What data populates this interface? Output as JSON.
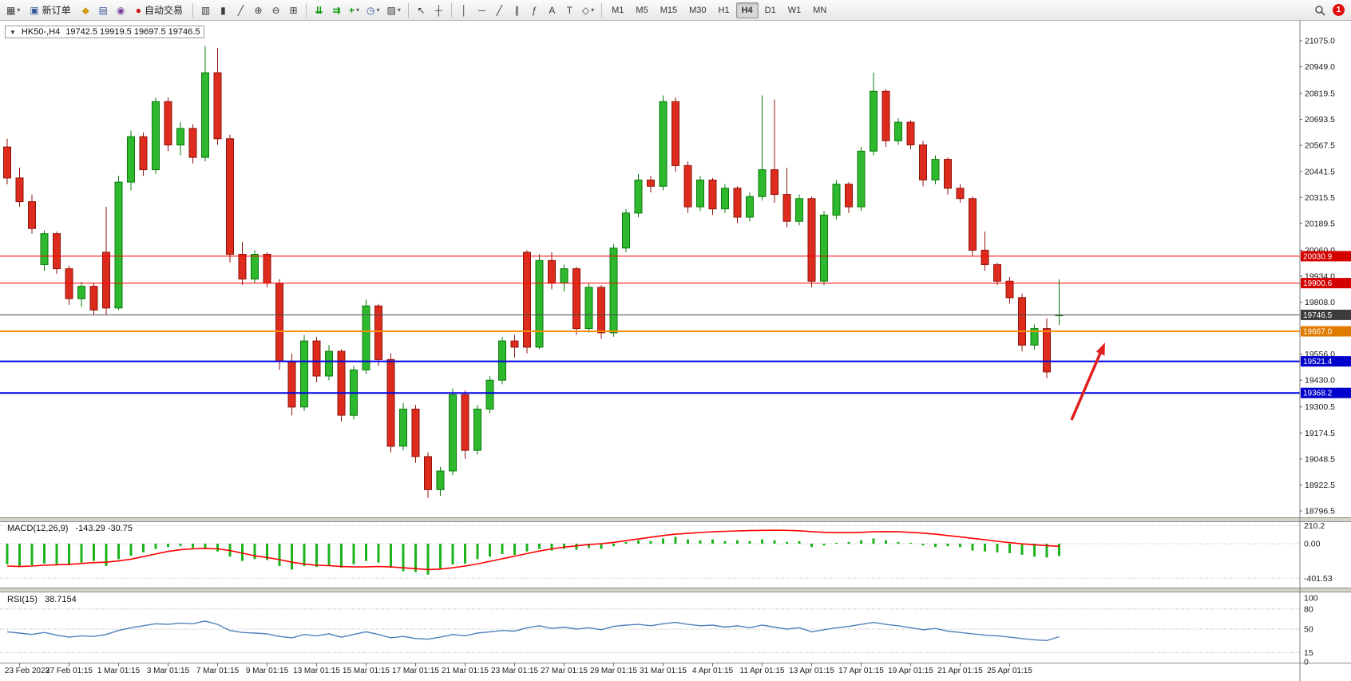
{
  "toolbar": {
    "new_order_label": "新订单",
    "auto_trading_label": "自动交易",
    "timeframes": [
      "M1",
      "M5",
      "M15",
      "M30",
      "H1",
      "H4",
      "D1",
      "W1",
      "MN"
    ],
    "active_timeframe": "H4",
    "notification_count": "1",
    "icons": {
      "new_chart": "▦",
      "caret": "▾",
      "new_order": "▣",
      "market_watch": "◆",
      "data_window": "▤",
      "navigator": "◉",
      "auto_trading_dot": "●",
      "chart_bars": "▥",
      "chart_candles": "▮",
      "chart_line": "╱",
      "zoom_in": "⊕",
      "zoom_out": "⊖",
      "tile_windows": "⊞",
      "auto_scroll": "⇊",
      "chart_shift": "⇉",
      "indicators_plus": "+",
      "periods_clock": "◷",
      "templates": "▨",
      "cursor": "↖",
      "crosshair": "┼",
      "vline": "│",
      "hline": "─",
      "trendline": "╱",
      "channel": "∥",
      "fibonacci": "ƒ",
      "text": "A",
      "text_label": "T",
      "shapes": "◇"
    }
  },
  "chart": {
    "collapse_glyph": "▼",
    "symbol_period": "HK50-,H4",
    "ohlc": "19742.5 19919.5 19697.5 19746.5"
  },
  "indicators": {
    "macd": {
      "name": "MACD(12,26,9)",
      "values": "-143.29 -30.75"
    },
    "rsi": {
      "name": "RSI(15)",
      "value": "38.7154"
    }
  },
  "chart_data": {
    "type": "candlestick",
    "symbol": "HK50-",
    "period": "H4",
    "last_ohlc": {
      "open": 19742.5,
      "high": 19919.5,
      "low": 19697.5,
      "close": 19746.5
    },
    "price_ticks": [
      "21075.0",
      "20949.0",
      "20819.5",
      "20693.5",
      "20567.5",
      "20441.5",
      "20315.5",
      "20189.5",
      "20060.0",
      "19934.0",
      "19808.0",
      "19556.0",
      "19430.0",
      "19300.5",
      "19174.5",
      "19048.5",
      "18922.5",
      "18796.5"
    ],
    "hlines": [
      {
        "value": 20030.9,
        "label": "20030.9",
        "color": "#ff0000",
        "width": 1,
        "badge": "#d40000"
      },
      {
        "value": 19900.6,
        "label": "19900.6",
        "color": "#ff0000",
        "width": 1,
        "badge": "#d40000"
      },
      {
        "value": 19746.5,
        "label": "19746.5",
        "color": "#4a4a4a",
        "width": 1,
        "badge": "#3c3c3c"
      },
      {
        "value": 19667.0,
        "label": "19667.0",
        "color": "#ff8c00",
        "width": 2,
        "badge": "#e07b00"
      },
      {
        "value": 19521.4,
        "label": "19521.4",
        "color": "#0000e8",
        "width": 2,
        "badge": "#0000cc"
      },
      {
        "value": 19368.2,
        "label": "19368.2",
        "color": "#0000e8",
        "width": 2,
        "badge": "#0000cc"
      }
    ],
    "candles": [
      [
        20560,
        20600,
        20380,
        20410
      ],
      [
        20410,
        20460,
        20270,
        20295
      ],
      [
        20295,
        20330,
        20140,
        20165
      ],
      [
        19990,
        20155,
        19960,
        20140
      ],
      [
        20140,
        20150,
        19945,
        19970
      ],
      [
        19970,
        19985,
        19795,
        19825
      ],
      [
        19825,
        19905,
        19785,
        19885
      ],
      [
        19885,
        19900,
        19745,
        19770
      ],
      [
        20050,
        20270,
        19745,
        19780
      ],
      [
        19780,
        20420,
        19770,
        20390
      ],
      [
        20390,
        20640,
        20350,
        20610
      ],
      [
        20610,
        20630,
        20420,
        20450
      ],
      [
        20450,
        20800,
        20430,
        20780
      ],
      [
        20780,
        20800,
        20540,
        20570
      ],
      [
        20570,
        20680,
        20520,
        20650
      ],
      [
        20650,
        20670,
        20480,
        20510
      ],
      [
        20510,
        21050,
        20490,
        20920
      ],
      [
        20920,
        21040,
        20570,
        20600
      ],
      [
        20600,
        20620,
        20000,
        20040
      ],
      [
        20040,
        20100,
        19890,
        19920
      ],
      [
        19920,
        20060,
        19900,
        20040
      ],
      [
        20040,
        20050,
        19880,
        19900
      ],
      [
        19900,
        19920,
        19480,
        19520
      ],
      [
        19520,
        19560,
        19260,
        19300
      ],
      [
        19300,
        19650,
        19280,
        19620
      ],
      [
        19620,
        19640,
        19420,
        19450
      ],
      [
        19450,
        19600,
        19430,
        19570
      ],
      [
        19570,
        19580,
        19230,
        19260
      ],
      [
        19260,
        19500,
        19240,
        19480
      ],
      [
        19480,
        19820,
        19460,
        19790
      ],
      [
        19790,
        19800,
        19500,
        19530
      ],
      [
        19530,
        19560,
        19080,
        19110
      ],
      [
        19110,
        19320,
        19090,
        19290
      ],
      [
        19290,
        19310,
        19030,
        19060
      ],
      [
        19060,
        19080,
        18860,
        18900
      ],
      [
        18900,
        19010,
        18870,
        18990
      ],
      [
        18990,
        19390,
        18970,
        19360
      ],
      [
        19360,
        19380,
        19050,
        19090
      ],
      [
        19090,
        19310,
        19070,
        19290
      ],
      [
        19290,
        19450,
        19270,
        19430
      ],
      [
        19430,
        19640,
        19410,
        19620
      ],
      [
        19620,
        19650,
        19540,
        19590
      ],
      [
        20050,
        20060,
        19560,
        19590
      ],
      [
        19590,
        20040,
        19580,
        20010
      ],
      [
        20010,
        20050,
        19870,
        19900
      ],
      [
        19900,
        19990,
        19860,
        19970
      ],
      [
        19970,
        19980,
        19650,
        19680
      ],
      [
        19680,
        19900,
        19660,
        19880
      ],
      [
        19880,
        19890,
        19630,
        19660
      ],
      [
        19660,
        20090,
        19640,
        20070
      ],
      [
        20070,
        20260,
        20050,
        20240
      ],
      [
        20240,
        20430,
        20220,
        20400
      ],
      [
        20400,
        20420,
        20340,
        20370
      ],
      [
        20370,
        20810,
        20350,
        20780
      ],
      [
        20780,
        20800,
        20440,
        20470
      ],
      [
        20470,
        20490,
        20240,
        20270
      ],
      [
        20270,
        20420,
        20250,
        20400
      ],
      [
        20400,
        20410,
        20230,
        20260
      ],
      [
        20260,
        20380,
        20240,
        20360
      ],
      [
        20360,
        20370,
        20190,
        20220
      ],
      [
        20220,
        20340,
        20200,
        20320
      ],
      [
        20320,
        20810,
        20300,
        20450
      ],
      [
        20450,
        20790,
        20290,
        20330
      ],
      [
        20330,
        20460,
        20170,
        20200
      ],
      [
        20200,
        20330,
        20180,
        20310
      ],
      [
        20310,
        20320,
        19880,
        19910
      ],
      [
        19910,
        20250,
        19890,
        20230
      ],
      [
        20230,
        20400,
        20210,
        20380
      ],
      [
        20380,
        20390,
        20240,
        20270
      ],
      [
        20270,
        20560,
        20250,
        20540
      ],
      [
        20540,
        20920,
        20520,
        20830
      ],
      [
        20830,
        20840,
        20560,
        20590
      ],
      [
        20590,
        20700,
        20570,
        20680
      ],
      [
        20680,
        20690,
        20550,
        20570
      ],
      [
        20570,
        20590,
        20370,
        20400
      ],
      [
        20400,
        20520,
        20380,
        20500
      ],
      [
        20500,
        20510,
        20330,
        20360
      ],
      [
        20360,
        20380,
        20290,
        20310
      ],
      [
        20310,
        20320,
        20030,
        20060
      ],
      [
        20060,
        20150,
        19960,
        19990
      ],
      [
        19990,
        20000,
        19890,
        19910
      ],
      [
        19910,
        19930,
        19800,
        19830
      ],
      [
        19830,
        19850,
        19570,
        19600
      ],
      [
        19600,
        19700,
        19580,
        19680
      ],
      [
        19680,
        19730,
        19440,
        19470
      ],
      [
        19742.5,
        19919.5,
        19697.5,
        19746.5
      ]
    ],
    "date_labels": [
      "23 Feb 2023",
      "27 Feb 01:15",
      "1 Mar 01:15",
      "3 Mar 01:15",
      "7 Mar 01:15",
      "9 Mar 01:15",
      "13 Mar 01:15",
      "15 Mar 01:15",
      "17 Mar 01:15",
      "21 Mar 01:15",
      "23 Mar 01:15",
      "27 Mar 01:15",
      "29 Mar 01:15",
      "31 Mar 01:15",
      "4 Apr 01:15",
      "11 Apr 01:15",
      "13 Apr 01:15",
      "17 Apr 01:15",
      "19 Apr 01:15",
      "21 Apr 01:15",
      "25 Apr 01:15"
    ],
    "macd": {
      "ticks": [
        "210.2",
        "0.00",
        "-401.53"
      ],
      "hist": [
        -240,
        -260,
        -250,
        -230,
        -240,
        -250,
        -220,
        -200,
        -260,
        -180,
        -140,
        -100,
        -60,
        -40,
        -30,
        -50,
        -60,
        -90,
        -150,
        -200,
        -180,
        -190,
        -260,
        -300,
        -260,
        -270,
        -250,
        -280,
        -240,
        -200,
        -220,
        -280,
        -320,
        -330,
        -360,
        -300,
        -240,
        -230,
        -180,
        -150,
        -120,
        -130,
        -90,
        -60,
        -80,
        -60,
        -70,
        -50,
        -60,
        -30,
        20,
        40,
        30,
        60,
        80,
        50,
        40,
        50,
        30,
        40,
        30,
        50,
        40,
        20,
        30,
        -40,
        -20,
        10,
        20,
        40,
        60,
        40,
        20,
        10,
        -20,
        -40,
        -30,
        -40,
        -80,
        -90,
        -100,
        -110,
        -130,
        -150,
        -160,
        -143.29
      ],
      "signal": [
        -260,
        -265,
        -260,
        -250,
        -245,
        -240,
        -230,
        -220,
        -215,
        -200,
        -180,
        -150,
        -120,
        -90,
        -70,
        -60,
        -55,
        -60,
        -80,
        -110,
        -140,
        -160,
        -185,
        -215,
        -235,
        -250,
        -255,
        -265,
        -270,
        -270,
        -265,
        -270,
        -280,
        -290,
        -300,
        -295,
        -280,
        -260,
        -235,
        -205,
        -175,
        -145,
        -115,
        -85,
        -60,
        -40,
        -25,
        -10,
        0,
        15,
        35,
        55,
        75,
        95,
        110,
        120,
        130,
        138,
        144,
        148,
        152,
        155,
        156,
        155,
        150,
        140,
        132,
        128,
        128,
        132,
        138,
        140,
        138,
        132,
        122,
        110,
        95,
        80,
        62,
        45,
        28,
        12,
        -2,
        -12,
        -22,
        -30.75
      ]
    },
    "rsi": {
      "ticks": [
        "100",
        "80",
        "50",
        "15",
        "0"
      ],
      "levels": [
        80,
        50,
        15
      ],
      "values": [
        46,
        44,
        42,
        45,
        41,
        38,
        40,
        39,
        42,
        48,
        52,
        55,
        58,
        57,
        59,
        58,
        62,
        57,
        48,
        45,
        44,
        43,
        39,
        37,
        42,
        40,
        43,
        38,
        42,
        46,
        42,
        37,
        39,
        36,
        35,
        38,
        42,
        40,
        44,
        46,
        48,
        47,
        52,
        55,
        51,
        53,
        50,
        52,
        49,
        54,
        56,
        57,
        55,
        58,
        60,
        57,
        55,
        56,
        53,
        55,
        52,
        56,
        53,
        50,
        52,
        46,
        49,
        52,
        54,
        57,
        60,
        57,
        55,
        52,
        49,
        51,
        47,
        45,
        43,
        41,
        40,
        38,
        36,
        34,
        33,
        38.7154
      ]
    },
    "colors": {
      "bull": "#2eb82e",
      "bull_stroke": "#0c7a0c",
      "bear": "#dd2c1e",
      "bear_stroke": "#8f130b",
      "macd_hist": "#1cb31c",
      "macd_signal": "#ff0000",
      "rsi_line": "#4f81bd",
      "arrow": "#e02020",
      "axis_text": "#1a1a1a"
    }
  }
}
